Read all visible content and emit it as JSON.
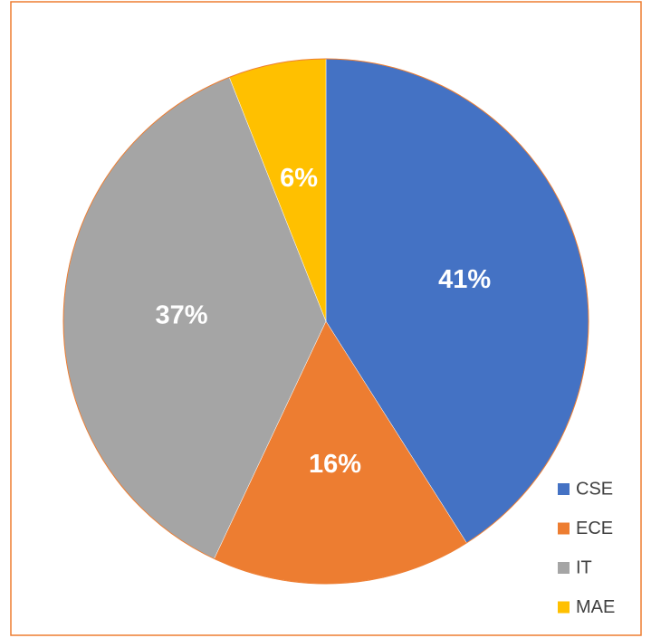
{
  "chart_data": {
    "type": "pie",
    "categories": [
      "CSE",
      "ECE",
      "IT",
      "MAE"
    ],
    "values": [
      41,
      16,
      37,
      6
    ],
    "value_labels": [
      "41%",
      "16%",
      "37%",
      "6%"
    ],
    "colors": [
      "#4472c4",
      "#ed7d31",
      "#a5a5a5",
      "#ffc000"
    ],
    "legend": "bottom-right"
  }
}
